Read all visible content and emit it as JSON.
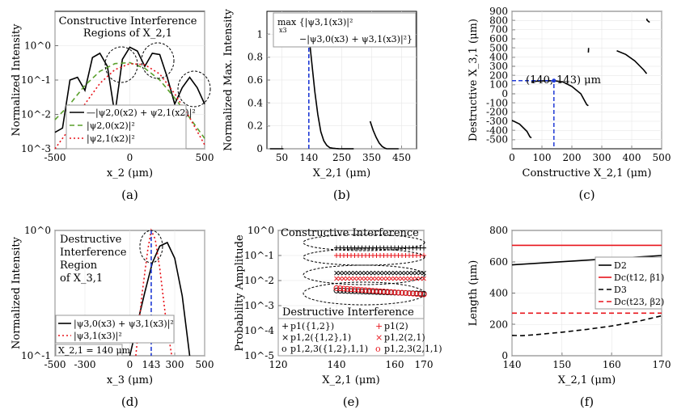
{
  "chart_data": [
    {
      "id": "a",
      "type": "line",
      "caption": "(a)",
      "ylabel": "Normalized Intensity",
      "xlabel": "x_2 (μm)",
      "xlim": [
        -500,
        500
      ],
      "ylim_log10": [
        -3,
        1
      ],
      "xticks": [
        "-500",
        "0",
        "500"
      ],
      "yticks": [
        "10^-3",
        "10^-2",
        "10^-1",
        "10^0"
      ],
      "annotation": [
        "Constructive Interference",
        "Regions of X_2,1"
      ],
      "legend": [
        "—|ψ2,0(x2) + ψ2,1(x2)|²",
        "|ψ2,0(x2)|²",
        "|ψ2,1(x2)|²"
      ],
      "series": [
        {
          "name": "|ψ2,0(x2)+ψ2,1(x2)|²",
          "color": "#000000",
          "style": "solid",
          "x": [
            -500,
            -450,
            -400,
            -350,
            -300,
            -250,
            -200,
            -150,
            -100,
            -50,
            0,
            50,
            100,
            150,
            200,
            250,
            300,
            350,
            400,
            450,
            500
          ],
          "y": [
            0.003,
            0.004,
            0.1,
            0.12,
            0.05,
            0.45,
            0.6,
            0.25,
            0.01,
            0.4,
            0.9,
            0.7,
            0.25,
            0.6,
            0.55,
            0.12,
            0.02,
            0.06,
            0.12,
            0.06,
            0.02
          ]
        },
        {
          "name": "|ψ2,0(x2)|²",
          "color": "#5aa02c",
          "style": "dash",
          "x": [
            -500,
            -400,
            -300,
            -200,
            -100,
            0,
            100,
            200,
            300,
            400,
            500
          ],
          "y": [
            0.007,
            0.02,
            0.07,
            0.18,
            0.3,
            0.32,
            0.22,
            0.1,
            0.03,
            0.008,
            0.002
          ]
        },
        {
          "name": "|ψ2,1(x2)|²",
          "color": "#e8141b",
          "style": "dot",
          "x": [
            -500,
            -400,
            -300,
            -200,
            -100,
            0,
            100,
            200,
            300,
            400,
            500
          ],
          "y": [
            0.001,
            0.004,
            0.02,
            0.08,
            0.2,
            0.3,
            0.28,
            0.15,
            0.04,
            0.008,
            0.0013
          ]
        }
      ]
    },
    {
      "id": "b",
      "type": "line",
      "caption": "(b)",
      "ylabel": "Normalized Max. Intensity",
      "xlabel": "X_2,1 (μm)",
      "xlim": [
        0,
        500
      ],
      "ylim": [
        0,
        1.2
      ],
      "xticks": [
        "50",
        "140",
        "250",
        "350",
        "450"
      ],
      "yticks": [
        "0",
        "0.2",
        "0.4",
        "0.6",
        "0.8",
        "1"
      ],
      "formula": [
        "max {|ψ3,1(x3)|²",
        "x3",
        "−|ψ3,0(x3) + ψ3,1(x3)|²}"
      ],
      "marker_x": 140,
      "series": [
        {
          "name": "s1",
          "x": [
            10,
            55
          ],
          "y": [
            0,
            0
          ]
        },
        {
          "name": "s2",
          "x": [
            140,
            150,
            160,
            170,
            180,
            190,
            200,
            210,
            220,
            230,
            240,
            250
          ],
          "y": [
            1.0,
            0.75,
            0.5,
            0.3,
            0.15,
            0.07,
            0.03,
            0.01,
            0.005,
            0.002,
            0.001,
            0
          ]
        },
        {
          "name": "s3",
          "x": [
            250,
            290
          ],
          "y": [
            0,
            0
          ]
        },
        {
          "name": "s4",
          "x": [
            345,
            355,
            365,
            375,
            385,
            395,
            400,
            440
          ],
          "y": [
            0.24,
            0.16,
            0.1,
            0.05,
            0.02,
            0.005,
            0,
            0
          ]
        }
      ]
    },
    {
      "id": "c",
      "type": "line",
      "caption": "(c)",
      "ylabel": "Destructive X_3,1 (μm)",
      "xlabel": "Constructive X_2,1 (μm)",
      "xlim": [
        0,
        500
      ],
      "ylim": [
        -600,
        900
      ],
      "xticks": [
        "0",
        "100",
        "200",
        "300",
        "400",
        "500"
      ],
      "yticks": [
        "-500",
        "-400",
        "-300",
        "-200",
        "-100",
        "0",
        "100",
        "200",
        "300",
        "400",
        "500",
        "600",
        "700",
        "800",
        "900"
      ],
      "point_label": "(140, 143) μm",
      "point": [
        140,
        143
      ],
      "series": [
        {
          "name": "c1",
          "x": [
            0,
            25,
            50,
            60,
            65
          ],
          "y": [
            -290,
            -330,
            -410,
            -470,
            -480
          ]
        },
        {
          "name": "c2",
          "x": [
            65,
            70,
            100,
            130,
            140
          ],
          "y": [
            130,
            135,
            140,
            142,
            143
          ]
        },
        {
          "name": "c3",
          "x": [
            140,
            170,
            200,
            230,
            250,
            255
          ],
          "y": [
            143,
            130,
            80,
            0,
            -120,
            -130
          ]
        },
        {
          "name": "c4",
          "x": [
            255,
            256
          ],
          "y": [
            450,
            500
          ]
        },
        {
          "name": "c5",
          "x": [
            350,
            380,
            410,
            440,
            450
          ],
          "y": [
            470,
            430,
            360,
            260,
            220
          ]
        },
        {
          "name": "c6",
          "x": [
            450,
            452,
            460
          ],
          "y": [
            820,
            800,
            780
          ]
        }
      ]
    },
    {
      "id": "d",
      "type": "line",
      "caption": "(d)",
      "ylabel": "Normalized Intensity",
      "xlabel": "x_3 (μm)",
      "xlim": [
        -500,
        500
      ],
      "ylim_log10": [
        -1,
        0
      ],
      "xticks": [
        "-500",
        "-300",
        "0",
        "143",
        "300",
        "500"
      ],
      "yticks": [
        "10^-1",
        "10^0"
      ],
      "annotation": [
        "Destructive",
        "Interference",
        "Region",
        "of X_3,1"
      ],
      "legend": [
        "|ψ3,0(x3) + ψ3,1(x3)|²",
        "|ψ3,1(x3)|²"
      ],
      "box_label": "X_2,1 = 140 μm",
      "marker_x": 143,
      "series": [
        {
          "name": "sum",
          "color": "#000000",
          "style": "solid",
          "x": [
            0,
            50,
            100,
            150,
            200,
            250,
            300,
            350,
            400
          ],
          "y": [
            0.1,
            0.18,
            0.32,
            0.55,
            0.75,
            0.8,
            0.6,
            0.3,
            0.1
          ]
        },
        {
          "name": "psi31",
          "color": "#e8141b",
          "style": "dot",
          "x": [
            40,
            80,
            120,
            143,
            170,
            200,
            240,
            280
          ],
          "y": [
            0.1,
            0.3,
            0.7,
            1.0,
            0.85,
            0.5,
            0.2,
            0.1
          ]
        }
      ]
    },
    {
      "id": "e",
      "type": "scatter",
      "caption": "(e)",
      "ylabel": "Probability Amplitude",
      "xlabel": "X_2,1 (μm)",
      "xlim": [
        120,
        170
      ],
      "ylim_log10": [
        -5,
        0
      ],
      "xticks": [
        "120",
        "140",
        "160",
        "170"
      ],
      "yticks": [
        "10^-5",
        "10^-4",
        "10^-3",
        "10^-2",
        "10^-1",
        "10^0"
      ],
      "annotation_top": "Constructive Interference",
      "annotation_bottom": "Destructive Interference",
      "legend": [
        "p1({1,2})",
        "p1,2({1,2},1)",
        "p1,2,3({1,2},1,1)",
        "p1(2)",
        "p1,2(2,1)",
        "p1,2,3(2,1,1)"
      ],
      "series": [
        {
          "name": "p1({1,2})",
          "marker": "+",
          "color": "#000000",
          "y": 0.2
        },
        {
          "name": "p1(2)",
          "marker": "+",
          "color": "#e8141b",
          "y": 0.1
        },
        {
          "name": "p1,2({1,2},1)",
          "marker": "x",
          "color": "#000000",
          "y": 0.02
        },
        {
          "name": "p1,2(2,1)",
          "marker": "x",
          "color": "#e8141b",
          "y": 0.012
        },
        {
          "name": "p1,2,3({1,2},1,1)",
          "marker": "o",
          "color": "#000000",
          "y_start": 0.004,
          "y_end": 0.003
        },
        {
          "name": "p1,2,3(2,1,1)",
          "marker": "o",
          "color": "#e8141b",
          "y_start": 0.005,
          "y_end": 0.0028
        }
      ]
    },
    {
      "id": "f",
      "type": "line",
      "caption": "(f)",
      "ylabel": "Length (μm)",
      "xlabel": "X_2,1 (μm)",
      "xlim": [
        140,
        170
      ],
      "ylim": [
        0,
        800
      ],
      "xticks": [
        "140",
        "150",
        "160",
        "170"
      ],
      "yticks": [
        "0",
        "200",
        "400",
        "600",
        "800"
      ],
      "legend": [
        "D2",
        "Dc(t12, β1)",
        "D3",
        "Dc(t23, β2)"
      ],
      "series": [
        {
          "name": "D2",
          "color": "#000000",
          "style": "solid",
          "x": [
            140,
            170
          ],
          "y": [
            580,
            640
          ]
        },
        {
          "name": "Dc(t12, β1)",
          "color": "#e8141b",
          "style": "solid",
          "x": [
            140,
            170
          ],
          "y": [
            705,
            705
          ]
        },
        {
          "name": "D3",
          "color": "#000000",
          "style": "dash",
          "x": [
            140,
            142,
            145,
            150,
            155,
            160,
            165,
            170
          ],
          "y": [
            130,
            128,
            135,
            150,
            168,
            190,
            218,
            255
          ]
        },
        {
          "name": "Dc(t23, β2)",
          "color": "#e8141b",
          "style": "dash",
          "x": [
            140,
            170
          ],
          "y": [
            272,
            272
          ]
        }
      ]
    }
  ]
}
